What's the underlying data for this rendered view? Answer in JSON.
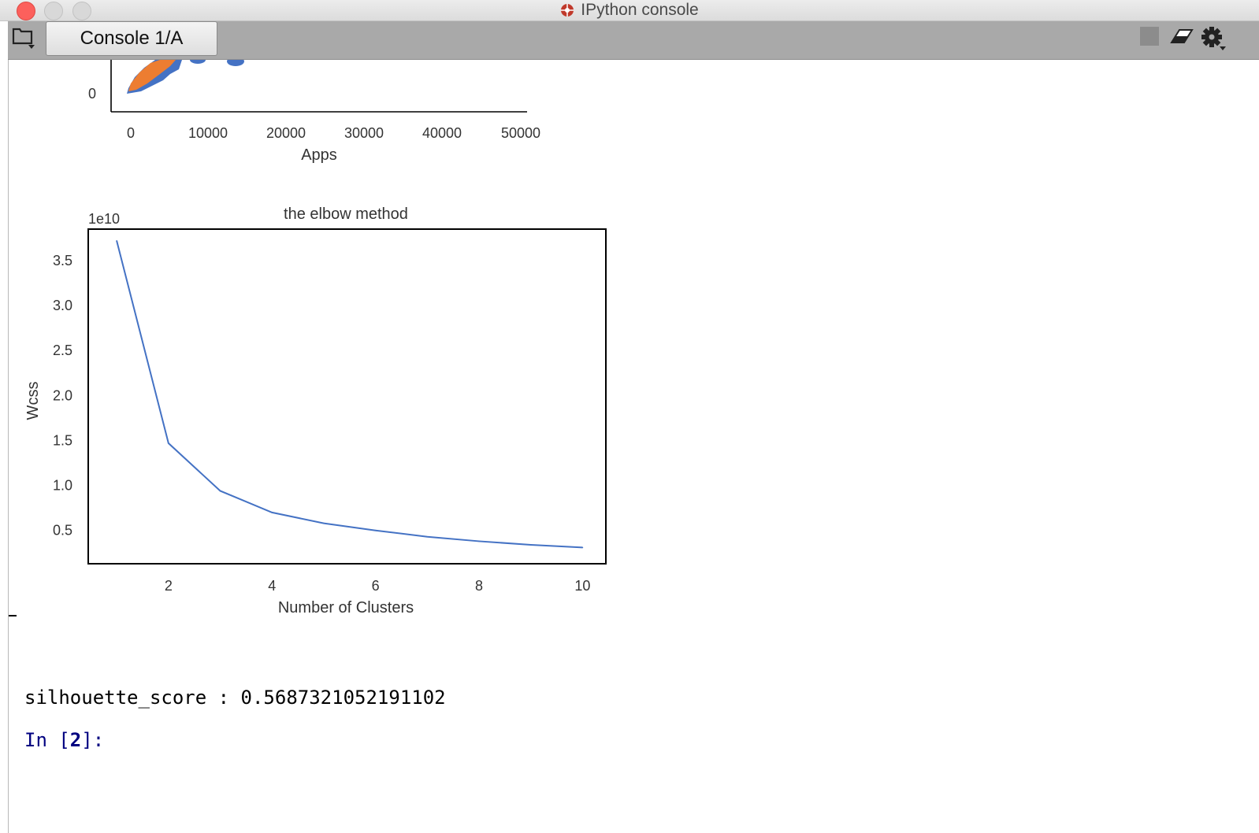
{
  "window": {
    "title": "IPython console"
  },
  "tabs": [
    {
      "label": "Console 1/A"
    }
  ],
  "scatter_plot": {
    "xlabel": "Apps",
    "y_tick_visible": "0",
    "x_ticks": [
      "0",
      "10000",
      "20000",
      "30000",
      "40000",
      "50000"
    ],
    "colors": {
      "cluster_orange": "#ed7d31",
      "cluster_blue": "#4472c4"
    }
  },
  "chart_data": {
    "type": "line",
    "title": "the elbow method",
    "xlabel": "Number of Clusters",
    "ylabel": "Wcss",
    "y_offset_label": "1e10",
    "x": [
      1,
      2,
      3,
      4,
      5,
      6,
      7,
      8,
      9,
      10
    ],
    "series": [
      {
        "values": [
          37200000000.0,
          14700000000.0,
          9400000000.0,
          7000000000.0,
          5800000000.0,
          5000000000.0,
          4300000000.0,
          3800000000.0,
          3400000000.0,
          3100000000.0
        ]
      }
    ],
    "xlim": [
      0.45,
      10.45
    ],
    "ylim": [
      1300000000.0,
      38500000000.0
    ],
    "x_ticks": [
      2,
      4,
      6,
      8,
      10
    ],
    "y_ticks": [
      "0.5",
      "1.0",
      "1.5",
      "2.0",
      "2.5",
      "3.0",
      "3.5"
    ],
    "grid": false,
    "line_color": "#4472c4"
  },
  "console": {
    "output": "silhouette_score : 0.5687321052191102",
    "prompt_prefix": "In [",
    "prompt_number": "2",
    "prompt_suffix": "]:"
  }
}
